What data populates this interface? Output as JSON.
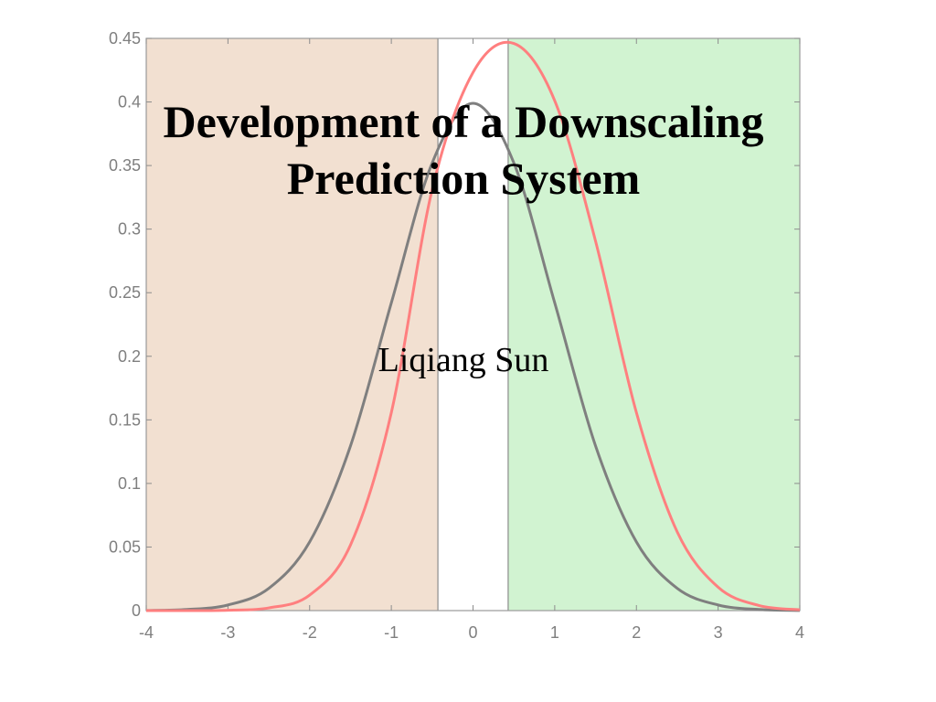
{
  "slide": {
    "title_line1": "Development of a Downscaling",
    "title_line2": "Prediction System",
    "author": "Liqiang Sun"
  },
  "chart_data": {
    "type": "line",
    "title": "",
    "xlabel": "",
    "ylabel": "",
    "xlim": [
      -4,
      4
    ],
    "ylim": [
      0,
      0.45
    ],
    "xticks": [
      -4,
      -3,
      -2,
      -1,
      0,
      1,
      2,
      3,
      4
    ],
    "yticks": [
      0,
      0.05,
      0.1,
      0.15,
      0.2,
      0.25,
      0.3,
      0.35,
      0.4,
      0.45
    ],
    "grid": false,
    "legend": "none",
    "shaded_regions": [
      {
        "x_start": -4,
        "x_end": -0.43,
        "color": "#f2e0d1"
      },
      {
        "x_start": 0.43,
        "x_end": 4,
        "color": "#d1f3d1"
      }
    ],
    "vertical_lines": [
      -0.43,
      0.43
    ],
    "series": [
      {
        "color": "#7f7f7f",
        "x": [
          -4,
          -3.5,
          -3,
          -2.5,
          -2,
          -1.5,
          -1,
          -0.5,
          0,
          0.5,
          1,
          1.5,
          2,
          2.5,
          3,
          3.5,
          4
        ],
        "y": [
          0.0001,
          0.0009,
          0.0044,
          0.0175,
          0.054,
          0.1295,
          0.242,
          0.352,
          0.399,
          0.352,
          0.242,
          0.1295,
          0.054,
          0.0175,
          0.0044,
          0.0009,
          0.0001
        ]
      },
      {
        "color": "#ff7f7f",
        "x": [
          -4,
          -3.5,
          -3,
          -2.5,
          -2,
          -1.5,
          -1,
          -0.5,
          0,
          0.5,
          1,
          1.5,
          2,
          2.5,
          3,
          3.5,
          4
        ],
        "y": [
          0.0,
          0.0,
          0.0003,
          0.0021,
          0.0122,
          0.0516,
          0.1557,
          0.3311,
          0.4232,
          0.446,
          0.401,
          0.2905,
          0.1557,
          0.0618,
          0.0184,
          0.004,
          0.0006
        ]
      }
    ]
  }
}
